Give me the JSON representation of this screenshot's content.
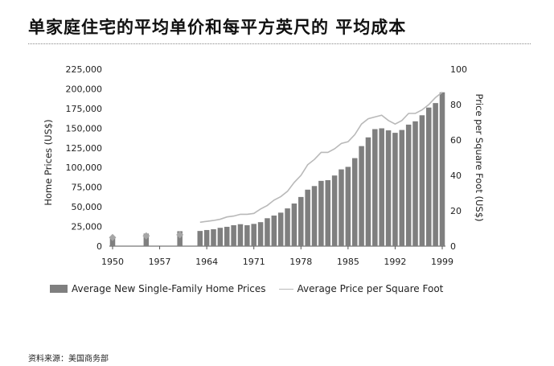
{
  "page": {
    "title": "单家庭住宅的平均单价和每平方英尺的 平均成本",
    "source": "资料来源：美国商务部"
  },
  "chart_data": {
    "type": "bar",
    "title": "",
    "xlabel": "",
    "ylabel": "Home Prices (US$)",
    "ylabel_right": "Price per Square Foot (US$)",
    "ylim": [
      0,
      225000
    ],
    "ylim_right": [
      0,
      100
    ],
    "y_ticks": [
      "0",
      "25,000",
      "50,000",
      "75,000",
      "100,000",
      "125,000",
      "150,000",
      "175,000",
      "200,000",
      "225,000"
    ],
    "y_ticks_right": [
      "0",
      "20",
      "40",
      "60",
      "80",
      "100"
    ],
    "x_ticks": [
      "1950",
      "1957",
      "1964",
      "1971",
      "1978",
      "1985",
      "1992",
      "1999"
    ],
    "legend": {
      "position": "bottom",
      "bar_label": "Average New Single-Family Home Prices",
      "line_label": "Average Price per Square Foot"
    },
    "colors": {
      "bar": "#7f7f7f",
      "line": "#b9b9b9",
      "marker": "#a6a6a6"
    },
    "series": [
      {
        "name": "Average New Single-Family Home Prices",
        "type": "bar",
        "x": [
          1950,
          1955,
          1960,
          1963,
          1964,
          1965,
          1966,
          1967,
          1968,
          1969,
          1970,
          1971,
          1972,
          1973,
          1974,
          1975,
          1976,
          1977,
          1978,
          1979,
          1980,
          1981,
          1982,
          1983,
          1984,
          1985,
          1986,
          1987,
          1988,
          1989,
          1990,
          1991,
          1992,
          1993,
          1994,
          1995,
          1996,
          1997,
          1998,
          1999
        ],
        "values": [
          11000,
          16000,
          19000,
          19300,
          20500,
          21500,
          23300,
          24600,
          26600,
          27900,
          26600,
          28300,
          30500,
          35500,
          38900,
          42600,
          48000,
          54200,
          62500,
          71800,
          76400,
          83000,
          83900,
          89800,
          97600,
          100800,
          111900,
          127200,
          138300,
          148800,
          149800,
          147200,
          144100,
          147700,
          154500,
          158700,
          166400,
          176200,
          181900,
          195600
        ]
      },
      {
        "name": "Average Price per Square Foot",
        "type": "line",
        "x": [
          1963,
          1964,
          1965,
          1966,
          1967,
          1968,
          1969,
          1970,
          1971,
          1972,
          1973,
          1974,
          1975,
          1976,
          1977,
          1978,
          1979,
          1980,
          1981,
          1982,
          1983,
          1984,
          1985,
          1986,
          1987,
          1988,
          1989,
          1990,
          1991,
          1992,
          1993,
          1994,
          1995,
          1996,
          1997,
          1998,
          1999
        ],
        "values": [
          13.5,
          14,
          14.5,
          15.2,
          16.5,
          17,
          18,
          18,
          18.5,
          21,
          23,
          26,
          28,
          31,
          36,
          40,
          46,
          49,
          53,
          53,
          55,
          58,
          59,
          63,
          69,
          72,
          73,
          74,
          71,
          69,
          71,
          75,
          75,
          77,
          80,
          84,
          87
        ]
      },
      {
        "name": "",
        "type": "marker",
        "x": [
          1950,
          1955,
          1960
        ],
        "values": [
          11000,
          13000,
          14500
        ]
      }
    ]
  }
}
